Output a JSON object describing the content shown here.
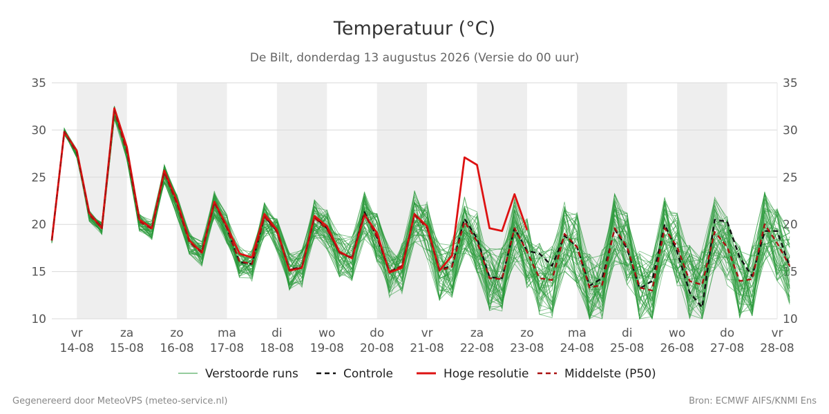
{
  "chart_data": {
    "type": "line",
    "title": "Temperatuur (°C)",
    "subtitle": "De Bilt, donderdag 13 augustus 2026 (Versie do 00 uur)",
    "ylim": [
      10,
      35
    ],
    "yticks": [
      "10",
      "15",
      "20",
      "25",
      "30",
      "35"
    ],
    "grid": true,
    "x_start_date": "2026-08-13T12:00",
    "x_end_date": "2026-08-28T00:00",
    "x_step_hours": 6,
    "day_ticks": [
      {
        "date": "2026-08-14",
        "day": "vr",
        "label": "14-08"
      },
      {
        "date": "2026-08-15",
        "day": "za",
        "label": "15-08"
      },
      {
        "date": "2026-08-16",
        "day": "zo",
        "label": "16-08"
      },
      {
        "date": "2026-08-17",
        "day": "ma",
        "label": "17-08"
      },
      {
        "date": "2026-08-18",
        "day": "di",
        "label": "18-08"
      },
      {
        "date": "2026-08-19",
        "day": "wo",
        "label": "19-08"
      },
      {
        "date": "2026-08-20",
        "day": "do",
        "label": "20-08"
      },
      {
        "date": "2026-08-21",
        "day": "vr",
        "label": "21-08"
      },
      {
        "date": "2026-08-22",
        "day": "za",
        "label": "22-08"
      },
      {
        "date": "2026-08-23",
        "day": "zo",
        "label": "23-08"
      },
      {
        "date": "2026-08-24",
        "day": "ma",
        "label": "24-08"
      },
      {
        "date": "2026-08-25",
        "day": "di",
        "label": "25-08"
      },
      {
        "date": "2026-08-26",
        "day": "wo",
        "label": "26-08"
      },
      {
        "date": "2026-08-27",
        "day": "do",
        "label": "27-08"
      },
      {
        "date": "2026-08-28",
        "day": "vr",
        "label": "28-08"
      }
    ],
    "shaded_days": [
      "2026-08-14",
      "2026-08-16",
      "2026-08-18",
      "2026-08-20",
      "2026-08-22",
      "2026-08-24",
      "2026-08-26"
    ],
    "series": [
      {
        "name": "Controle",
        "style": "dashed",
        "color": "#111111",
        "values": [
          18.3,
          29.8,
          27.6,
          21.2,
          19.7,
          32.2,
          28.0,
          20.5,
          19.6,
          25.6,
          22.3,
          18.2,
          17.1,
          22.4,
          19.6,
          16.0,
          15.8,
          20.9,
          19.3,
          15.2,
          15.5,
          20.8,
          19.6,
          17.0,
          16.5,
          21.3,
          18.6,
          15.0,
          15.6,
          21.1,
          19.7,
          15.2,
          15.6,
          20.6,
          18.5,
          14.4,
          14.3,
          19.6,
          17.2,
          16.9,
          15.6,
          18.8,
          17.6,
          13.5,
          14.3,
          19.5,
          17.4,
          13.2,
          14.0,
          20.0,
          17.1,
          12.8,
          11.2,
          20.5,
          20.3,
          16.5,
          14.5,
          19.3,
          19.3,
          15.5
        ]
      },
      {
        "name": "Hoge resolutie",
        "style": "solid",
        "color": "#dd1111",
        "values": [
          18.3,
          29.8,
          27.8,
          21.2,
          19.6,
          32.3,
          28.2,
          20.5,
          19.6,
          25.7,
          22.5,
          18.3,
          17.0,
          22.4,
          19.8,
          16.9,
          16.5,
          21.1,
          19.4,
          15.1,
          15.4,
          20.9,
          19.8,
          17.1,
          16.4,
          21.0,
          19.1,
          14.9,
          15.4,
          21.1,
          19.8,
          15.1,
          16.7,
          27.1,
          26.3,
          19.6,
          19.3,
          23.2,
          19.4
        ]
      },
      {
        "name": "Middelste (P50)",
        "style": "dashed",
        "color": "#aa1111",
        "values": [
          18.3,
          29.8,
          27.6,
          21.0,
          19.6,
          32.0,
          27.7,
          20.3,
          19.5,
          25.5,
          22.2,
          18.1,
          17.0,
          22.3,
          19.6,
          16.1,
          15.8,
          20.8,
          19.2,
          15.2,
          15.4,
          20.7,
          19.5,
          17.0,
          16.4,
          21.1,
          18.7,
          15.0,
          15.6,
          21.0,
          19.6,
          15.1,
          15.5,
          20.3,
          18.2,
          14.3,
          14.2,
          19.6,
          17.1,
          14.3,
          14.1,
          19.0,
          17.6,
          13.3,
          13.6,
          19.6,
          17.6,
          13.3,
          13.0,
          19.6,
          17.6,
          14.0,
          13.6,
          19.2,
          17.6,
          14.0,
          14.2,
          20.0,
          18.0,
          15.6
        ]
      }
    ],
    "ensemble_name": "Verstoorde runs",
    "ensemble_color": "#2a9a3a",
    "ensemble_count": 50,
    "ensemble_base": [
      18.3,
      29.8,
      27.5,
      20.9,
      19.6,
      31.8,
      27.6,
      20.2,
      19.4,
      25.4,
      22.0,
      18.0,
      16.9,
      22.1,
      19.5,
      16.0,
      15.7,
      20.5,
      19.0,
      15.0,
      15.3,
      20.6,
      19.3,
      16.8,
      16.3,
      21.0,
      18.6,
      14.9,
      15.4,
      20.7,
      19.4,
      15.0,
      15.4,
      20.0,
      18.0,
      14.2,
      14.1,
      19.4,
      16.9,
      14.2,
      14.0,
      18.8,
      17.4,
      13.3,
      13.5,
      19.4,
      17.4,
      13.3,
      12.9,
      19.4,
      17.4,
      13.9,
      13.5,
      19.0,
      17.4,
      13.9,
      14.0,
      19.8,
      17.8,
      15.4
    ],
    "legend": [
      {
        "label": "Verstoorde runs",
        "color": "#2a9a3a",
        "style": "thin"
      },
      {
        "label": "Controle",
        "color": "#111111",
        "style": "dashed"
      },
      {
        "label": "Hoge resolutie",
        "color": "#dd1111",
        "style": "solid"
      },
      {
        "label": "Middelste (P50)",
        "color": "#aa1111",
        "style": "dashed"
      }
    ],
    "legend_position": "bottom"
  },
  "footer": {
    "left": "Gegenereerd door MeteoVPS (meteo-service.nl)",
    "right": "Bron: ECMWF AIFS/KNMI Ens"
  }
}
